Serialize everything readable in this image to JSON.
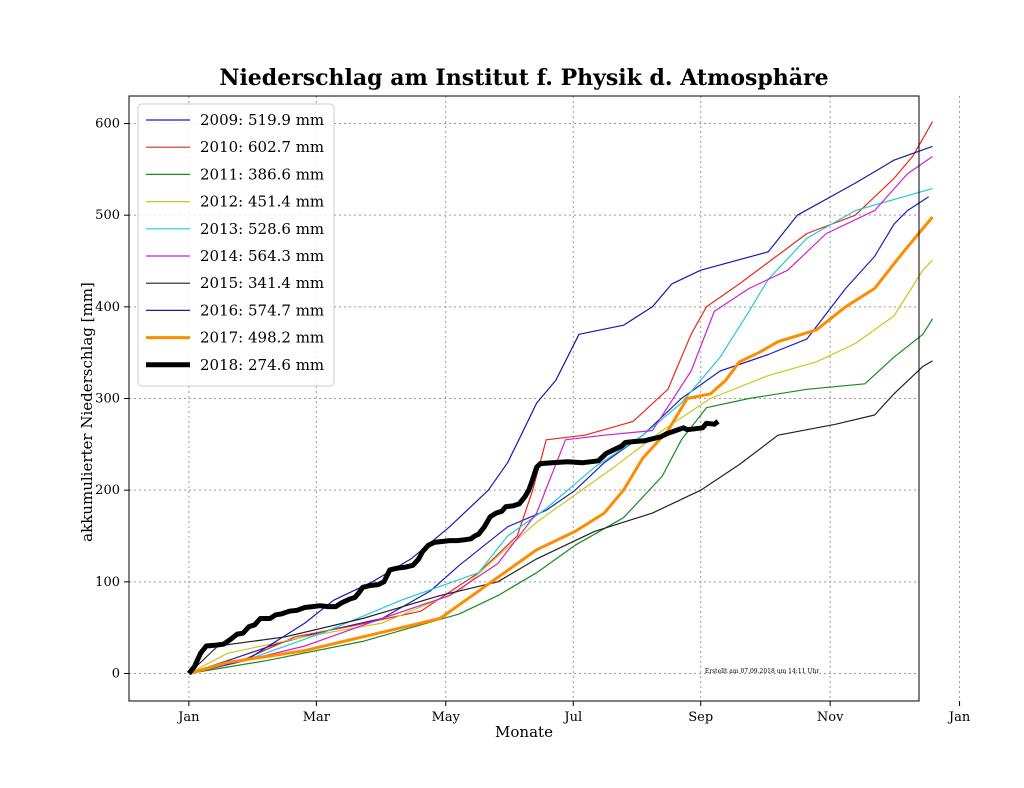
{
  "chart_data": {
    "type": "line",
    "title": "Niederschlag am Institut f. Physik d. Atmosphäre",
    "xlabel": "Monate",
    "ylabel": "akkumulierter Niederschlag [mm]",
    "x_unit": "day of year",
    "xlim": [
      -31,
      378
    ],
    "ylim": [
      -30,
      630
    ],
    "x_ticks": [
      {
        "value": 0,
        "label": "Jan"
      },
      {
        "value": 66,
        "label": "Mar"
      },
      {
        "value": 133,
        "label": "May"
      },
      {
        "value": 199,
        "label": "Jul"
      },
      {
        "value": 265,
        "label": "Sep"
      },
      {
        "value": 332,
        "label": "Nov"
      },
      {
        "value": 399,
        "label": "Jan"
      }
    ],
    "y_ticks": [
      0,
      100,
      200,
      300,
      400,
      500,
      600
    ],
    "grid": true,
    "legend_position": "top-left",
    "annotation": "Erstellt am 07.09.2018 um 14:11 Uhr",
    "series": [
      {
        "name": "2009: 519.9 mm",
        "color": "#1f1fbf",
        "width": 1.2,
        "points": [
          [
            0,
            0
          ],
          [
            20,
            14
          ],
          [
            45,
            32
          ],
          [
            70,
            46
          ],
          [
            100,
            60
          ],
          [
            125,
            90
          ],
          [
            140,
            118
          ],
          [
            165,
            160
          ],
          [
            185,
            178
          ],
          [
            200,
            200
          ],
          [
            215,
            230
          ],
          [
            235,
            260
          ],
          [
            255,
            300
          ],
          [
            275,
            330
          ],
          [
            300,
            348
          ],
          [
            320,
            365
          ],
          [
            340,
            420
          ],
          [
            355,
            455
          ],
          [
            365,
            490
          ],
          [
            372,
            505
          ],
          [
            383,
            520
          ]
        ]
      },
      {
        "name": "2010: 602.7 mm",
        "color": "#e8281c",
        "width": 1.2,
        "points": [
          [
            0,
            0
          ],
          [
            25,
            12
          ],
          [
            55,
            40
          ],
          [
            85,
            52
          ],
          [
            120,
            68
          ],
          [
            150,
            110
          ],
          [
            170,
            150
          ],
          [
            178,
            200
          ],
          [
            185,
            255
          ],
          [
            205,
            260
          ],
          [
            230,
            275
          ],
          [
            248,
            310
          ],
          [
            260,
            370
          ],
          [
            268,
            400
          ],
          [
            285,
            425
          ],
          [
            320,
            480
          ],
          [
            345,
            500
          ],
          [
            365,
            540
          ],
          [
            375,
            565
          ],
          [
            385,
            602
          ]
        ]
      },
      {
        "name": "2011: 386.6 mm",
        "color": "#1a8c1a",
        "width": 1.2,
        "points": [
          [
            0,
            0
          ],
          [
            40,
            14
          ],
          [
            90,
            35
          ],
          [
            140,
            65
          ],
          [
            160,
            85
          ],
          [
            180,
            110
          ],
          [
            200,
            140
          ],
          [
            225,
            170
          ],
          [
            245,
            215
          ],
          [
            255,
            255
          ],
          [
            268,
            290
          ],
          [
            290,
            300
          ],
          [
            320,
            310
          ],
          [
            350,
            316
          ],
          [
            365,
            345
          ],
          [
            380,
            370
          ],
          [
            385,
            387
          ]
        ]
      },
      {
        "name": "2012: 451.4 mm",
        "color": "#c8c81e",
        "width": 1.2,
        "points": [
          [
            0,
            0
          ],
          [
            20,
            22
          ],
          [
            60,
            40
          ],
          [
            100,
            55
          ],
          [
            140,
            90
          ],
          [
            160,
            128
          ],
          [
            180,
            165
          ],
          [
            200,
            195
          ],
          [
            220,
            225
          ],
          [
            245,
            265
          ],
          [
            270,
            300
          ],
          [
            300,
            325
          ],
          [
            325,
            340
          ],
          [
            345,
            360
          ],
          [
            365,
            390
          ],
          [
            380,
            440
          ],
          [
            385,
            451
          ]
        ]
      },
      {
        "name": "2013: 528.6 mm",
        "color": "#22c8d8",
        "width": 1.2,
        "points": [
          [
            0,
            0
          ],
          [
            30,
            15
          ],
          [
            70,
            45
          ],
          [
            110,
            80
          ],
          [
            150,
            110
          ],
          [
            165,
            150
          ],
          [
            185,
            180
          ],
          [
            210,
            225
          ],
          [
            235,
            260
          ],
          [
            255,
            295
          ],
          [
            275,
            345
          ],
          [
            290,
            395
          ],
          [
            300,
            430
          ],
          [
            320,
            475
          ],
          [
            345,
            505
          ],
          [
            370,
            520
          ],
          [
            385,
            529
          ]
        ]
      },
      {
        "name": "2014: 564.3 mm",
        "color": "#cc22cc",
        "width": 1.2,
        "points": [
          [
            0,
            0
          ],
          [
            25,
            12
          ],
          [
            60,
            30
          ],
          [
            100,
            60
          ],
          [
            135,
            85
          ],
          [
            160,
            120
          ],
          [
            180,
            175
          ],
          [
            195,
            255
          ],
          [
            215,
            260
          ],
          [
            240,
            265
          ],
          [
            260,
            330
          ],
          [
            272,
            395
          ],
          [
            290,
            420
          ],
          [
            310,
            440
          ],
          [
            330,
            480
          ],
          [
            355,
            505
          ],
          [
            372,
            545
          ],
          [
            385,
            564
          ]
        ]
      },
      {
        "name": "2015: 341.4 mm",
        "color": "#222222",
        "width": 1.2,
        "points": [
          [
            0,
            0
          ],
          [
            15,
            30
          ],
          [
            50,
            40
          ],
          [
            90,
            60
          ],
          [
            130,
            85
          ],
          [
            160,
            100
          ],
          [
            180,
            125
          ],
          [
            210,
            155
          ],
          [
            240,
            175
          ],
          [
            265,
            200
          ],
          [
            285,
            228
          ],
          [
            305,
            260
          ],
          [
            335,
            272
          ],
          [
            355,
            282
          ],
          [
            365,
            305
          ],
          [
            380,
            335
          ],
          [
            385,
            341
          ]
        ]
      },
      {
        "name": "2016: 574.7 mm",
        "color": "#1a1aa6",
        "width": 1.2,
        "points": [
          [
            0,
            0
          ],
          [
            30,
            15
          ],
          [
            60,
            55
          ],
          [
            75,
            80
          ],
          [
            95,
            100
          ],
          [
            115,
            125
          ],
          [
            135,
            160
          ],
          [
            155,
            200
          ],
          [
            165,
            230
          ],
          [
            172,
            260
          ],
          [
            180,
            295
          ],
          [
            190,
            320
          ],
          [
            202,
            370
          ],
          [
            225,
            380
          ],
          [
            240,
            400
          ],
          [
            250,
            425
          ],
          [
            265,
            440
          ],
          [
            300,
            460
          ],
          [
            315,
            500
          ],
          [
            345,
            535
          ],
          [
            365,
            560
          ],
          [
            385,
            575
          ]
        ]
      },
      {
        "name": "2017: 498.2 mm",
        "color": "#ff8c00",
        "width": 3.0,
        "points": [
          [
            0,
            0
          ],
          [
            20,
            12
          ],
          [
            60,
            25
          ],
          [
            100,
            45
          ],
          [
            130,
            60
          ],
          [
            140,
            75
          ],
          [
            160,
            105
          ],
          [
            180,
            135
          ],
          [
            200,
            155
          ],
          [
            215,
            175
          ],
          [
            225,
            200
          ],
          [
            235,
            235
          ],
          [
            248,
            265
          ],
          [
            258,
            300
          ],
          [
            270,
            305
          ],
          [
            278,
            320
          ],
          [
            285,
            340
          ],
          [
            295,
            350
          ],
          [
            305,
            362
          ],
          [
            325,
            375
          ],
          [
            340,
            400
          ],
          [
            355,
            420
          ],
          [
            370,
            460
          ],
          [
            385,
            498
          ]
        ]
      },
      {
        "name": "2018: 274.6 mm",
        "color": "#000000",
        "width": 5.0,
        "points": [
          [
            0,
            0
          ],
          [
            3,
            8
          ],
          [
            6,
            22
          ],
          [
            9,
            30
          ],
          [
            14,
            31
          ],
          [
            18,
            32
          ],
          [
            22,
            38
          ],
          [
            25,
            43
          ],
          [
            28,
            44
          ],
          [
            31,
            51
          ],
          [
            34,
            53
          ],
          [
            37,
            60
          ],
          [
            42,
            60
          ],
          [
            45,
            64
          ],
          [
            48,
            65
          ],
          [
            52,
            68
          ],
          [
            56,
            69
          ],
          [
            60,
            72
          ],
          [
            64,
            73
          ],
          [
            68,
            74
          ],
          [
            72,
            73
          ],
          [
            76,
            73
          ],
          [
            79,
            77
          ],
          [
            83,
            81
          ],
          [
            86,
            83
          ],
          [
            88,
            88
          ],
          [
            90,
            94
          ],
          [
            94,
            96
          ],
          [
            98,
            97
          ],
          [
            101,
            100
          ],
          [
            104,
            113
          ],
          [
            108,
            115
          ],
          [
            112,
            116
          ],
          [
            116,
            118
          ],
          [
            119,
            125
          ],
          [
            121,
            133
          ],
          [
            124,
            140
          ],
          [
            127,
            143
          ],
          [
            131,
            144
          ],
          [
            135,
            145
          ],
          [
            139,
            145
          ],
          [
            143,
            146
          ],
          [
            146,
            147
          ],
          [
            148,
            150
          ],
          [
            150,
            152
          ],
          [
            153,
            160
          ],
          [
            156,
            171
          ],
          [
            159,
            175
          ],
          [
            162,
            177
          ],
          [
            164,
            182
          ],
          [
            168,
            183
          ],
          [
            171,
            185
          ],
          [
            174,
            193
          ],
          [
            176,
            200
          ],
          [
            178,
            212
          ],
          [
            180,
            225
          ],
          [
            182,
            229
          ],
          [
            188,
            230
          ],
          [
            196,
            231
          ],
          [
            204,
            230
          ],
          [
            212,
            232
          ],
          [
            216,
            240
          ],
          [
            220,
            244
          ],
          [
            224,
            248
          ],
          [
            226,
            252
          ],
          [
            230,
            253
          ],
          [
            236,
            254
          ],
          [
            240,
            256
          ],
          [
            244,
            258
          ],
          [
            248,
            262
          ],
          [
            252,
            265
          ],
          [
            256,
            268
          ],
          [
            258,
            266
          ],
          [
            262,
            267
          ],
          [
            266,
            268
          ],
          [
            268,
            273
          ],
          [
            272,
            272
          ],
          [
            274,
            275
          ]
        ]
      }
    ]
  }
}
